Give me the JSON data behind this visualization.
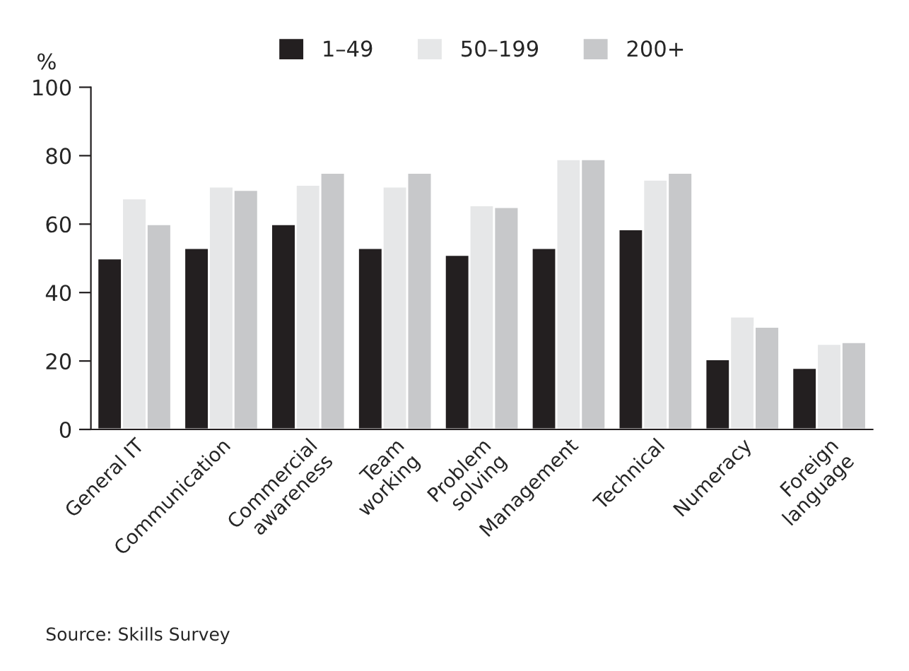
{
  "chart_data": {
    "type": "bar",
    "ylabel": "%",
    "categories": [
      "General IT",
      "Communication",
      "Commercial\nawareness",
      "Team\nworking",
      "Problem\nsolving",
      "Management",
      "Technical",
      "Numeracy",
      "Foreign\nlanguage"
    ],
    "series": [
      {
        "name": "1–49",
        "color": "#231f20",
        "values": [
          50,
          53,
          60,
          53,
          51,
          53,
          58.5,
          20.5,
          18
        ]
      },
      {
        "name": "50–199",
        "color": "#e6e7e8",
        "values": [
          67.5,
          71,
          71.5,
          71,
          65.5,
          79,
          73,
          33,
          25
        ]
      },
      {
        "name": "200+",
        "color": "#c7c8ca",
        "values": [
          60,
          70,
          75,
          75,
          65,
          79,
          75,
          30,
          25.5
        ]
      }
    ],
    "ylim": [
      0,
      100
    ],
    "yticks": [
      0,
      20,
      40,
      60,
      80,
      100
    ],
    "grid": false,
    "legend": "top",
    "annotations": [
      "Source: Skills Survey"
    ]
  }
}
